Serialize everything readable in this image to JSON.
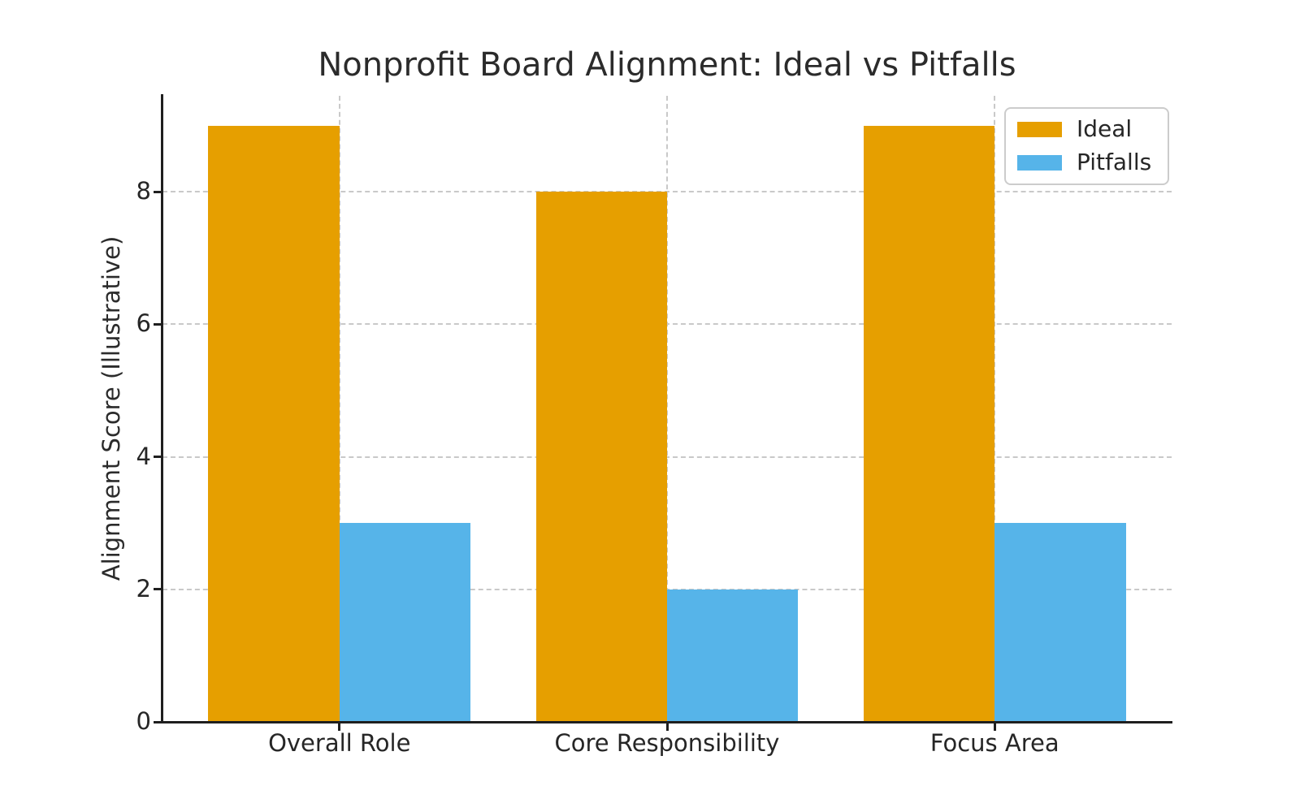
{
  "chart_data": {
    "type": "bar",
    "title": "Nonprofit Board Alignment: Ideal vs Pitfalls",
    "ylabel": "Alignment Score (Illustrative)",
    "xlabel": "",
    "categories": [
      "Overall Role",
      "Core Responsibility",
      "Focus Area"
    ],
    "series": [
      {
        "name": "Ideal",
        "color": "#E69F00",
        "values": [
          9,
          8,
          9
        ]
      },
      {
        "name": "Pitfalls",
        "color": "#56B4E9",
        "values": [
          3,
          2,
          3
        ]
      }
    ],
    "yticks": [
      0,
      2,
      4,
      6,
      8
    ],
    "ylim": [
      0,
      9.45
    ],
    "bar_width_units": 0.4,
    "grid": "dashed",
    "gridlines": "horizontal at yticks and vertical at category centers, drawn behind bars",
    "legend_position": "upper-right"
  }
}
